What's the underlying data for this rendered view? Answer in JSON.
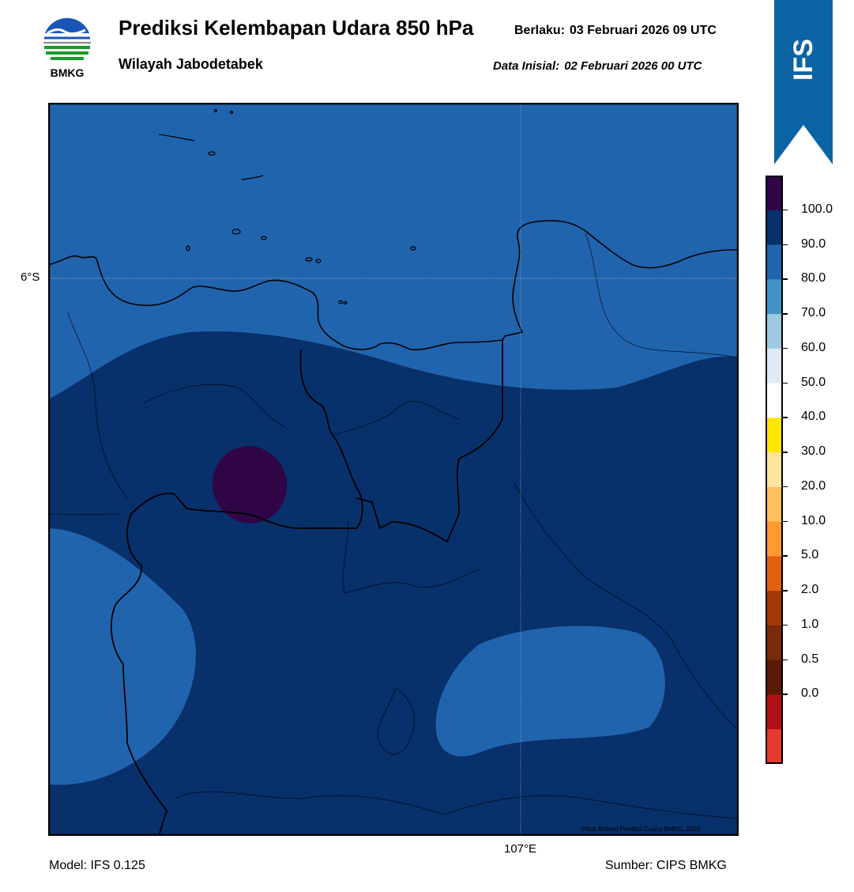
{
  "header": {
    "title": "Prediksi Kelembapan Udara 850 hPa",
    "subtitle": "Wilayah Jabodetabek",
    "valid_label": "Berlaku:",
    "valid_value": "03 Februari 2026 09 UTC",
    "init_label": "Data Inisial:",
    "init_value": "02 Februari 2026 00 UTC"
  },
  "logo": {
    "text": "BMKG",
    "icon": "bmkg-logo"
  },
  "badge": {
    "text": "IFS",
    "color": "#0a64a4"
  },
  "map": {
    "lat_label": "6°S",
    "lon_label": "107°E",
    "credit": "©Sub Bidang Prediksi Cuaca BMKG, 2020",
    "region_colors": {
      "humidity_80_90": "#2164ae",
      "humidity_90_100": "#08306b",
      "humidity_100_plus": "#2f0546"
    }
  },
  "footer": {
    "model": "Model: IFS 0.125",
    "source": "Sumber: CIPS BMKG"
  },
  "colorbar": {
    "labels": [
      "100.0",
      "90.0",
      "80.0",
      "70.0",
      "60.0",
      "50.0",
      "40.0",
      "30.0",
      "20.0",
      "10.0",
      "5.0",
      "2.0",
      "1.0",
      "0.5",
      "0.0"
    ],
    "colors": [
      "#2f0546",
      "#08306b",
      "#2164ae",
      "#4292c6",
      "#9ecae1",
      "#deebf7",
      "#ffffff",
      "#ffe600",
      "#ffe4a0",
      "#ffc060",
      "#ff9a30",
      "#e06010",
      "#a33a06",
      "#7a2a0a",
      "#5a1a05",
      "#b01015",
      "#e43a30"
    ]
  }
}
